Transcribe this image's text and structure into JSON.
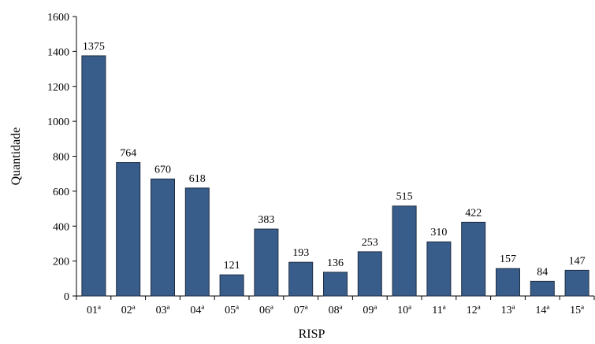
{
  "chart_data": {
    "type": "bar",
    "title": "",
    "xlabel": "RISP",
    "ylabel": "Quantidade",
    "categories": [
      "01ª",
      "02ª",
      "03ª",
      "04ª",
      "05ª",
      "06ª",
      "07ª",
      "08ª",
      "09ª",
      "10ª",
      "11ª",
      "12ª",
      "13ª",
      "14ª",
      "15ª"
    ],
    "values": [
      1375,
      764,
      670,
      618,
      121,
      383,
      193,
      136,
      253,
      515,
      310,
      422,
      157,
      84,
      147
    ],
    "ylim": [
      0,
      1600
    ],
    "yticks": [
      0,
      200,
      400,
      600,
      800,
      1000,
      1200,
      1400,
      1600
    ],
    "grid": false,
    "legend": "none",
    "bar_color": "#385d8a"
  }
}
